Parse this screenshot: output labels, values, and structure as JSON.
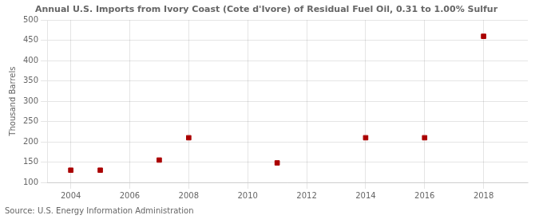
{
  "chart_data": {
    "type": "scatter",
    "title": "Annual U.S. Imports from Ivory Coast (Cote d'Ivore) of Residual Fuel Oil, 0.31 to 1.00% Sulfur",
    "ylabel": "Thousand Barrels",
    "annotation": "Source: U.S. Energy Information Administration",
    "x": [
      2004,
      2005,
      2007,
      2008,
      2011,
      2014,
      2016,
      2018
    ],
    "values": [
      130,
      130,
      155,
      210,
      148,
      210,
      210,
      460
    ],
    "color": "#aa0000",
    "marker": "square",
    "xlim": [
      2003.2,
      2019.5
    ],
    "ylim": [
      100,
      500
    ],
    "xticks": [
      2004,
      2006,
      2008,
      2010,
      2012,
      2014,
      2016,
      2018
    ],
    "yticks": [
      100,
      150,
      200,
      250,
      300,
      350,
      400,
      450,
      500
    ],
    "grid": true
  }
}
